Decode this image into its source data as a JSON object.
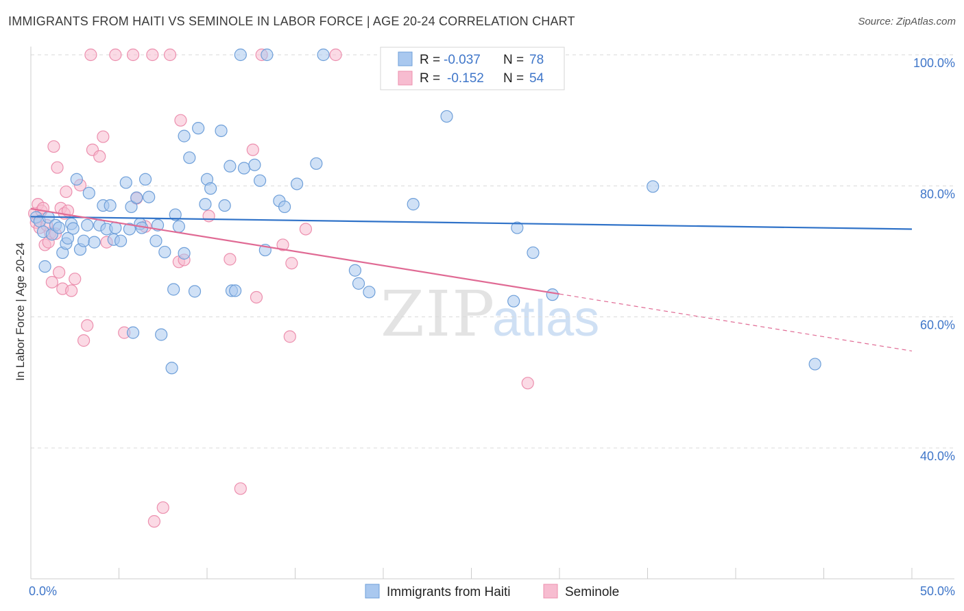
{
  "title": "IMMIGRANTS FROM HAITI VS SEMINOLE IN LABOR FORCE | AGE 20-24 CORRELATION CHART",
  "source": "Source: ZipAtlas.com",
  "watermark": {
    "zip": "ZIP",
    "atlas": "atlas"
  },
  "colors": {
    "blue_fill": "#a9c8ef",
    "blue_stroke": "#6e9fd9",
    "blue_line": "#2f72c8",
    "pink_fill": "#f7bcd0",
    "pink_stroke": "#ec8fae",
    "pink_line": "#e06a94",
    "axis_text": "#3f76c9",
    "grid": "#d9d9d9"
  },
  "legend": {
    "rows": [
      {
        "r_label": "R =",
        "r_value": "-0.037",
        "n_label": "N =",
        "n_value": "78",
        "series": "blue"
      },
      {
        "r_label": "R =",
        "r_value": "-0.152",
        "n_label": "N =",
        "n_value": "54",
        "series": "pink"
      }
    ]
  },
  "chart_data": {
    "type": "scatter",
    "title": "IMMIGRANTS FROM HAITI VS SEMINOLE IN LABOR FORCE | AGE 20-24 CORRELATION CHART",
    "xlabel": "",
    "ylabel": "In Labor Force | Age 20-24",
    "xlim": [
      0,
      50
    ],
    "ylim": [
      20,
      100
    ],
    "x_tick_labels": [
      "0.0%",
      "50.0%"
    ],
    "y_ticks": [
      40,
      60,
      80,
      100
    ],
    "y_tick_labels": [
      "40.0%",
      "60.0%",
      "80.0%",
      "100.0%"
    ],
    "series": [
      {
        "name": "Immigrants from Haiti",
        "color": "blue",
        "r": -0.037,
        "n": 78,
        "trend": {
          "x0": 0,
          "y0": 75.3,
          "x1": 50,
          "y1": 73.4
        },
        "points": [
          [
            0.3,
            75.2
          ],
          [
            0.5,
            74.6
          ],
          [
            0.7,
            73.0
          ],
          [
            0.8,
            67.7
          ],
          [
            1.0,
            75.2
          ],
          [
            1.2,
            72.6
          ],
          [
            1.4,
            74.0
          ],
          [
            1.6,
            73.6
          ],
          [
            1.8,
            69.8
          ],
          [
            2.0,
            71.2
          ],
          [
            2.1,
            72.0
          ],
          [
            2.3,
            74.2
          ],
          [
            2.4,
            73.5
          ],
          [
            2.6,
            81.0
          ],
          [
            2.8,
            70.3
          ],
          [
            3.0,
            71.6
          ],
          [
            3.2,
            74.0
          ],
          [
            3.3,
            78.9
          ],
          [
            3.6,
            71.4
          ],
          [
            3.9,
            74.0
          ],
          [
            4.1,
            77.0
          ],
          [
            4.3,
            73.4
          ],
          [
            4.5,
            77.0
          ],
          [
            4.7,
            71.8
          ],
          [
            4.8,
            73.6
          ],
          [
            5.1,
            71.6
          ],
          [
            5.4,
            80.5
          ],
          [
            5.6,
            73.4
          ],
          [
            5.7,
            76.8
          ],
          [
            5.8,
            57.6
          ],
          [
            6.0,
            78.2
          ],
          [
            6.2,
            74.2
          ],
          [
            6.3,
            73.6
          ],
          [
            6.5,
            81.0
          ],
          [
            6.7,
            78.3
          ],
          [
            7.1,
            71.6
          ],
          [
            7.2,
            74.0
          ],
          [
            7.4,
            57.3
          ],
          [
            7.6,
            69.9
          ],
          [
            8.0,
            52.2
          ],
          [
            8.1,
            64.2
          ],
          [
            8.2,
            75.6
          ],
          [
            8.4,
            73.8
          ],
          [
            8.7,
            69.7
          ],
          [
            8.7,
            87.6
          ],
          [
            9.0,
            84.3
          ],
          [
            9.5,
            88.8
          ],
          [
            9.9,
            77.2
          ],
          [
            10.0,
            81.0
          ],
          [
            10.2,
            79.6
          ],
          [
            10.8,
            88.4
          ],
          [
            11.0,
            77.0
          ],
          [
            11.3,
            83.0
          ],
          [
            11.4,
            64.0
          ],
          [
            11.6,
            64.0
          ],
          [
            12.1,
            82.7
          ],
          [
            12.7,
            83.2
          ],
          [
            13.0,
            80.8
          ],
          [
            13.3,
            70.2
          ],
          [
            14.1,
            77.7
          ],
          [
            14.4,
            76.8
          ],
          [
            15.1,
            80.3
          ],
          [
            16.2,
            83.4
          ],
          [
            16.6,
            100.0
          ],
          [
            13.4,
            100.0
          ],
          [
            11.9,
            100.0
          ],
          [
            18.6,
            65.1
          ],
          [
            19.2,
            63.8
          ],
          [
            21.7,
            77.2
          ],
          [
            23.6,
            90.6
          ],
          [
            27.4,
            62.4
          ],
          [
            27.6,
            73.6
          ],
          [
            28.5,
            69.8
          ],
          [
            29.6,
            63.4
          ],
          [
            35.3,
            79.9
          ],
          [
            44.5,
            52.8
          ],
          [
            18.4,
            67.1
          ],
          [
            9.3,
            63.9
          ]
        ]
      },
      {
        "name": "Seminole",
        "color": "pink",
        "r": -0.152,
        "n": 54,
        "trend": {
          "x0": 0,
          "y0": 76.5,
          "x1": 30,
          "y1": 63.5
        },
        "trend_dashed": {
          "x0": 30,
          "y0": 63.5,
          "x1": 50,
          "y1": 54.8
        },
        "points": [
          [
            0.2,
            75.8
          ],
          [
            0.3,
            74.4
          ],
          [
            0.4,
            77.2
          ],
          [
            0.5,
            73.6
          ],
          [
            0.6,
            76.2
          ],
          [
            0.7,
            76.6
          ],
          [
            0.8,
            71.0
          ],
          [
            1.0,
            71.4
          ],
          [
            1.1,
            72.8
          ],
          [
            1.2,
            65.3
          ],
          [
            1.3,
            86.0
          ],
          [
            1.5,
            82.8
          ],
          [
            1.6,
            66.8
          ],
          [
            1.7,
            76.6
          ],
          [
            1.8,
            64.3
          ],
          [
            1.9,
            75.8
          ],
          [
            2.0,
            79.1
          ],
          [
            2.1,
            76.2
          ],
          [
            2.3,
            64.0
          ],
          [
            2.5,
            65.8
          ],
          [
            2.8,
            80.1
          ],
          [
            3.0,
            56.4
          ],
          [
            3.2,
            58.7
          ],
          [
            3.5,
            85.5
          ],
          [
            3.9,
            84.5
          ],
          [
            4.1,
            87.5
          ],
          [
            4.3,
            71.4
          ],
          [
            5.3,
            57.6
          ],
          [
            6.0,
            78.1
          ],
          [
            6.5,
            73.8
          ],
          [
            7.0,
            28.8
          ],
          [
            7.5,
            30.9
          ],
          [
            8.5,
            90.0
          ],
          [
            8.4,
            68.4
          ],
          [
            8.7,
            68.7
          ],
          [
            10.1,
            75.4
          ],
          [
            11.3,
            68.8
          ],
          [
            11.9,
            33.8
          ],
          [
            12.6,
            85.5
          ],
          [
            12.8,
            63.0
          ],
          [
            14.3,
            71.0
          ],
          [
            14.7,
            57.0
          ],
          [
            14.8,
            68.2
          ],
          [
            15.6,
            73.4
          ],
          [
            17.3,
            100.0
          ],
          [
            13.1,
            100.0
          ],
          [
            7.9,
            100.0
          ],
          [
            6.9,
            100.0
          ],
          [
            5.8,
            100.0
          ],
          [
            4.8,
            100.0
          ],
          [
            3.4,
            100.0
          ],
          [
            28.2,
            49.9
          ],
          [
            0.9,
            74.0
          ],
          [
            1.4,
            72.7
          ]
        ]
      }
    ]
  },
  "bottom_legend": {
    "items": [
      "Immigrants from Haiti",
      "Seminole"
    ]
  }
}
